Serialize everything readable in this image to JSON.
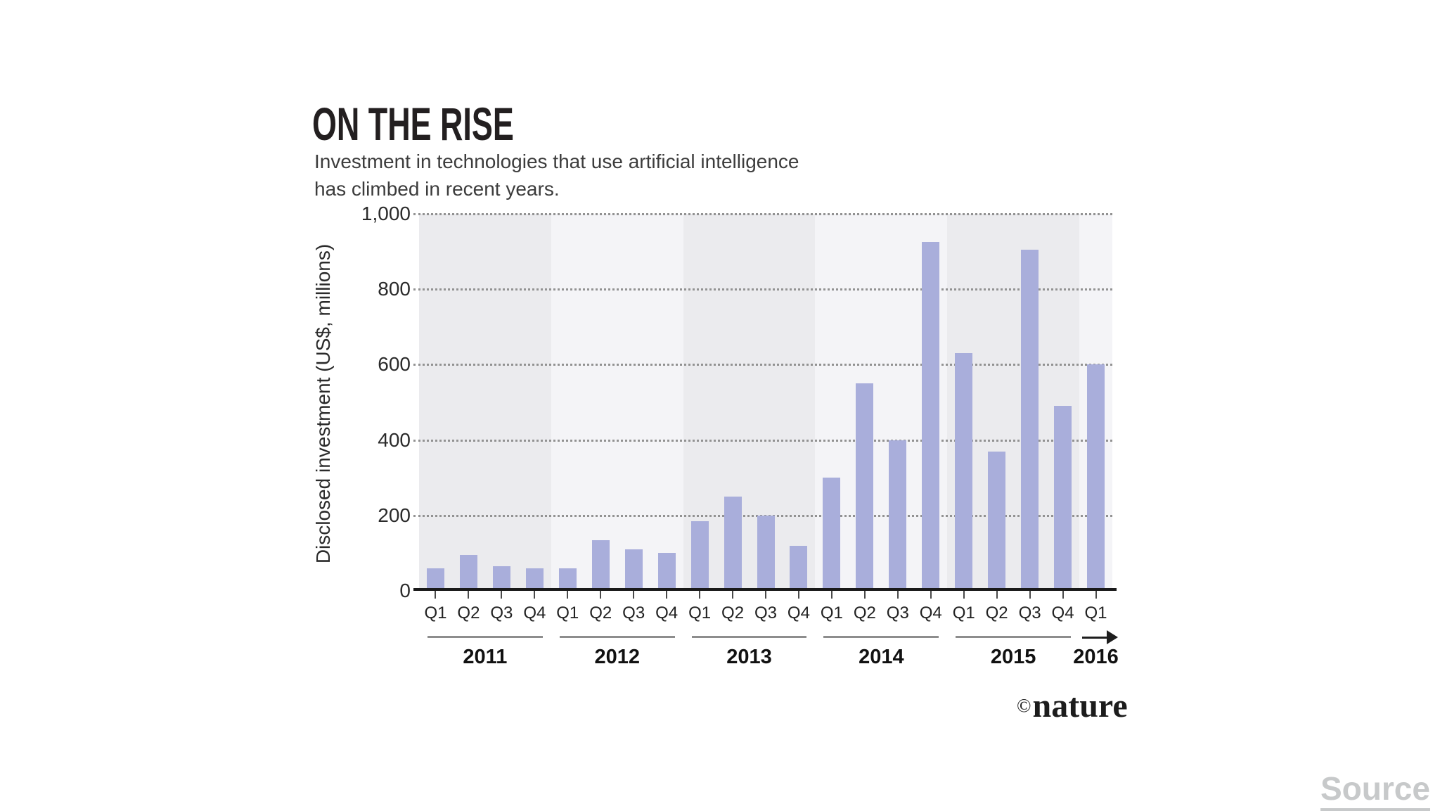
{
  "header": {
    "title": "ON THE RISE",
    "subtitle_line1": "Investment in technologies that use artificial intelligence",
    "subtitle_line2": "has climbed in recent years."
  },
  "chart_data": {
    "type": "bar",
    "title": "ON THE RISE",
    "subtitle": "Investment in technologies that use artificial intelligence has climbed in recent years.",
    "xlabel": "",
    "ylabel": "Disclosed investment (US$, millions)",
    "ylim": [
      0,
      1000
    ],
    "yticks": [
      0,
      200,
      400,
      600,
      800,
      1000
    ],
    "ytick_labels": [
      "0",
      "200",
      "400",
      "600",
      "800",
      "1,000"
    ],
    "grid": "horizontal-dotted",
    "legend": "none",
    "bar_color": "#a9aedb",
    "band_colors": [
      "#ebebee",
      "#f4f4f7"
    ],
    "years": [
      {
        "year": "2011",
        "quarters": [
          "Q1",
          "Q2",
          "Q3",
          "Q4"
        ],
        "values": [
          60,
          95,
          65,
          60
        ]
      },
      {
        "year": "2012",
        "quarters": [
          "Q1",
          "Q2",
          "Q3",
          "Q4"
        ],
        "values": [
          60,
          135,
          110,
          100
        ]
      },
      {
        "year": "2013",
        "quarters": [
          "Q1",
          "Q2",
          "Q3",
          "Q4"
        ],
        "values": [
          185,
          250,
          200,
          120
        ]
      },
      {
        "year": "2014",
        "quarters": [
          "Q1",
          "Q2",
          "Q3",
          "Q4"
        ],
        "values": [
          300,
          550,
          400,
          925
        ]
      },
      {
        "year": "2015",
        "quarters": [
          "Q1",
          "Q2",
          "Q3",
          "Q4"
        ],
        "values": [
          630,
          370,
          905,
          490
        ]
      },
      {
        "year": "2016",
        "quarters": [
          "Q1"
        ],
        "values": [
          600
        ],
        "arrow_after": true
      }
    ]
  },
  "footer": {
    "copyright": "©",
    "brand": "nature",
    "source_label": "Source"
  }
}
